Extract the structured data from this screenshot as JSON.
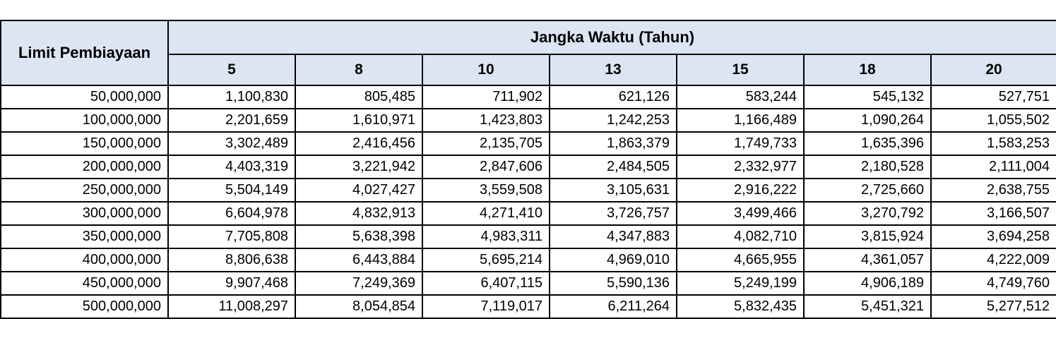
{
  "chart_data": {
    "type": "table",
    "row_header_label": "Limit Pembiayaan",
    "column_group_label": "Jangka Waktu (Tahun)",
    "columns": [
      "5",
      "8",
      "10",
      "13",
      "15",
      "18",
      "20"
    ],
    "row_labels": [
      "50,000,000",
      "100,000,000",
      "150,000,000",
      "200,000,000",
      "250,000,000",
      "300,000,000",
      "350,000,000",
      "400,000,000",
      "450,000,000",
      "500,000,000"
    ],
    "rows": [
      [
        "1,100,830",
        "805,485",
        "711,902",
        "621,126",
        "583,244",
        "545,132",
        "527,751"
      ],
      [
        "2,201,659",
        "1,610,971",
        "1,423,803",
        "1,242,253",
        "1,166,489",
        "1,090,264",
        "1,055,502"
      ],
      [
        "3,302,489",
        "2,416,456",
        "2,135,705",
        "1,863,379",
        "1,749,733",
        "1,635,396",
        "1,583,253"
      ],
      [
        "4,403,319",
        "3,221,942",
        "2,847,606",
        "2,484,505",
        "2,332,977",
        "2,180,528",
        "2,111,004"
      ],
      [
        "5,504,149",
        "4,027,427",
        "3,559,508",
        "3,105,631",
        "2,916,222",
        "2,725,660",
        "2,638,755"
      ],
      [
        "6,604,978",
        "4,832,913",
        "4,271,410",
        "3,726,757",
        "3,499,466",
        "3,270,792",
        "3,166,507"
      ],
      [
        "7,705,808",
        "5,638,398",
        "4,983,311",
        "4,347,883",
        "4,082,710",
        "3,815,924",
        "3,694,258"
      ],
      [
        "8,806,638",
        "6,443,884",
        "5,695,214",
        "4,969,010",
        "4,665,955",
        "4,361,057",
        "4,222,009"
      ],
      [
        "9,907,468",
        "7,249,369",
        "6,407,115",
        "5,590,136",
        "5,249,199",
        "4,906,189",
        "4,749,760"
      ],
      [
        "11,008,297",
        "8,054,854",
        "7,119,017",
        "6,211,264",
        "5,832,435",
        "5,451,321",
        "5,277,512"
      ]
    ]
  },
  "colors": {
    "header_bg": "#dce6f2",
    "border": "#000000",
    "text": "#000000",
    "row_bg": "#ffffff"
  }
}
